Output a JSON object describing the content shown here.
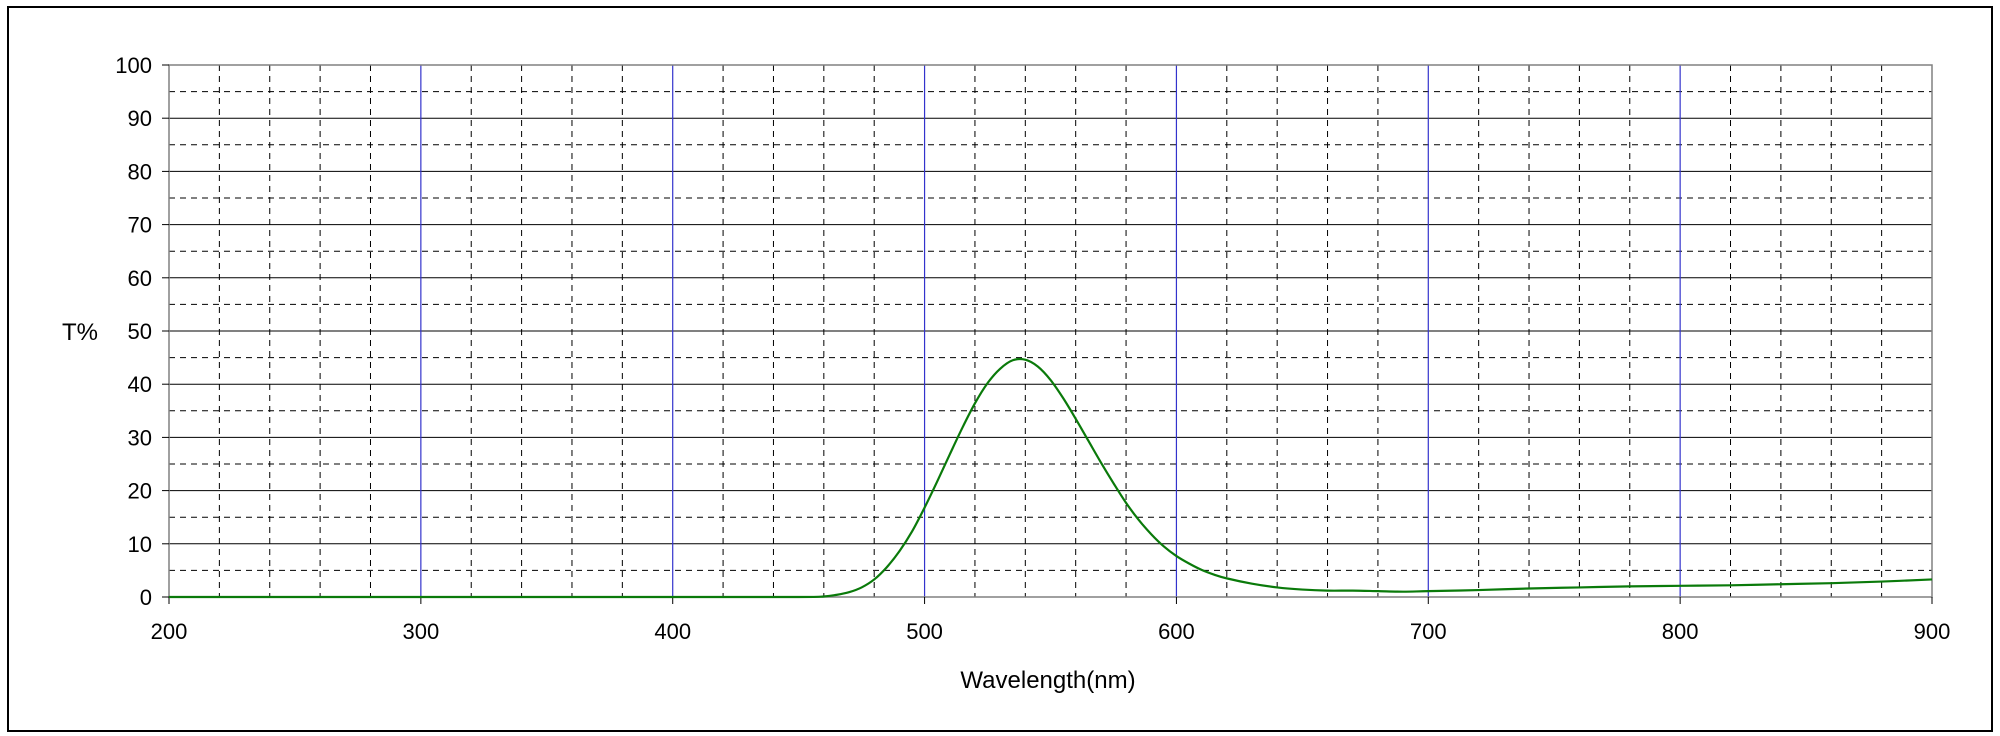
{
  "chart_data": {
    "type": "line",
    "title": "",
    "xlabel": "Wavelength(nm)",
    "ylabel": "T%",
    "xlim": [
      200,
      900
    ],
    "ylim": [
      0,
      100
    ],
    "x_ticks": [
      "200",
      "300",
      "400",
      "500",
      "600",
      "700",
      "800",
      "900"
    ],
    "y_ticks": [
      "0",
      "10",
      "20",
      "30",
      "40",
      "50",
      "60",
      "70",
      "80",
      "90",
      "100"
    ],
    "grid": true,
    "legend": "none",
    "colors": {
      "line": "#0a7a0a",
      "major_vertical_grid": "#3333cc",
      "horizontal_grid": "#000000",
      "minor_grid": "#000000",
      "frame": "#000000",
      "plot_border": "#808080"
    },
    "series": [
      {
        "x": [
          200,
          300,
          400,
          450,
          460,
          465,
          470,
          475,
          480,
          485,
          490,
          495,
          500,
          505,
          510,
          515,
          520,
          525,
          530,
          535,
          540,
          545,
          550,
          555,
          560,
          565,
          570,
          575,
          580,
          585,
          590,
          595,
          600,
          605,
          610,
          615,
          620,
          630,
          640,
          650,
          660,
          670,
          680,
          690,
          700,
          720,
          740,
          760,
          780,
          800,
          820,
          840,
          860,
          880,
          900
        ],
        "y": [
          0,
          0,
          0,
          0,
          0.1,
          0.4,
          0.9,
          1.8,
          3.3,
          5.6,
          8.6,
          12.3,
          16.8,
          21.7,
          26.8,
          31.8,
          36.4,
          40.2,
          42.9,
          44.5,
          44.6,
          43.3,
          40.8,
          37.4,
          33.5,
          29.4,
          25.3,
          21.4,
          17.7,
          14.5,
          11.8,
          9.5,
          7.7,
          6.3,
          5.1,
          4.2,
          3.5,
          2.5,
          1.8,
          1.4,
          1.2,
          1.2,
          1.1,
          1.0,
          1.1,
          1.3,
          1.6,
          1.8,
          2.0,
          2.1,
          2.2,
          2.4,
          2.6,
          2.9,
          3.3
        ]
      }
    ]
  }
}
